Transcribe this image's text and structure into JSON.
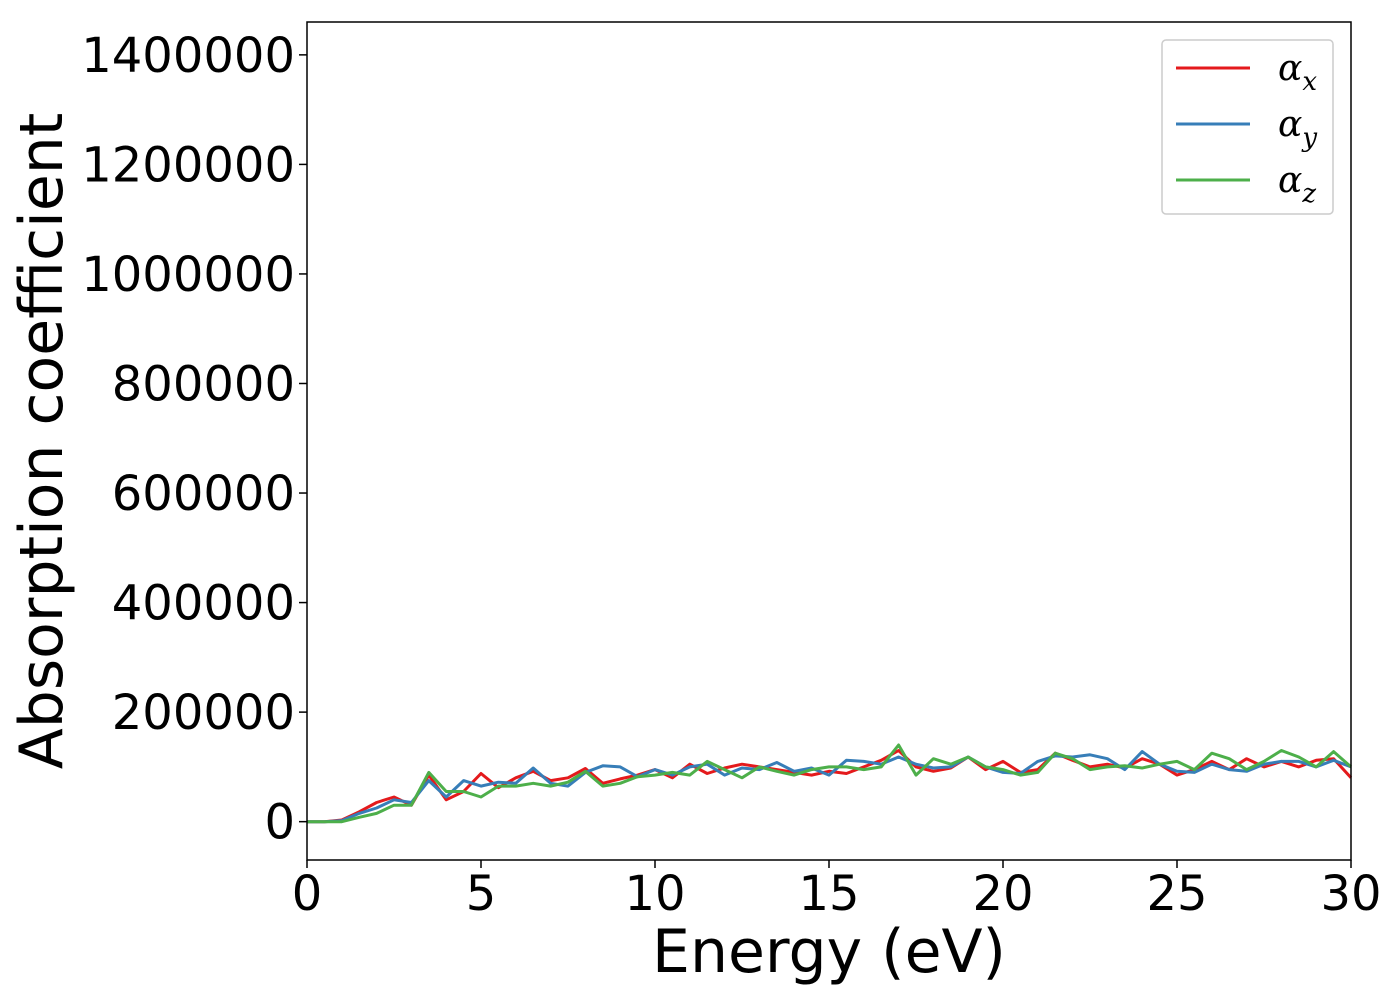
{
  "chart_data": {
    "type": "line",
    "xlabel": "Energy (eV)",
    "ylabel": "Absorption coefficient",
    "xlim": [
      0,
      30
    ],
    "ylim": [
      -70000,
      1460000
    ],
    "xticks": [
      0,
      5,
      10,
      15,
      20,
      25,
      30
    ],
    "yticks": [
      0,
      200000,
      400000,
      600000,
      800000,
      1000000,
      1200000,
      1400000
    ],
    "xtick_labels": [
      "0",
      "5",
      "10",
      "15",
      "20",
      "25",
      "30"
    ],
    "ytick_labels": [
      "0",
      "200000",
      "400000",
      "600000",
      "800000",
      "1000000",
      "1200000",
      "1400000"
    ],
    "grid": false,
    "legend_position": "top-right",
    "x": [
      0,
      0.5,
      1,
      1.5,
      2,
      2.5,
      3,
      3.5,
      4,
      4.5,
      5,
      5.5,
      6,
      6.5,
      7,
      7.5,
      8,
      8.5,
      9,
      9.5,
      10,
      10.5,
      11,
      11.5,
      12,
      12.5,
      13,
      13.5,
      14,
      14.5,
      15,
      15.5,
      16,
      16.5,
      17,
      17.5,
      18,
      18.5,
      19,
      19.5,
      20,
      20.5,
      21,
      21.5,
      22,
      22.5,
      23,
      23.5,
      24,
      24.5,
      25,
      25.5,
      26,
      26.5,
      27,
      27.5,
      28,
      28.5,
      29,
      29.5,
      30
    ],
    "series": [
      {
        "name": "α",
        "subscript": "x",
        "color": "#e41a1c",
        "values": [
          0,
          0,
          3000,
          18000,
          35000,
          45000,
          30000,
          85000,
          40000,
          55000,
          88000,
          62000,
          80000,
          92000,
          75000,
          80000,
          97000,
          70000,
          78000,
          85000,
          95000,
          80000,
          105000,
          88000,
          98000,
          105000,
          100000,
          95000,
          90000,
          85000,
          92000,
          88000,
          100000,
          112000,
          130000,
          100000,
          92000,
          98000,
          118000,
          95000,
          110000,
          90000,
          95000,
          125000,
          112000,
          100000,
          105000,
          98000,
          115000,
          105000,
          85000,
          95000,
          110000,
          95000,
          115000,
          100000,
          110000,
          100000,
          112000,
          115000,
          80000
        ]
      },
      {
        "name": "α",
        "subscript": "y",
        "color": "#377eb8",
        "values": [
          0,
          0,
          2000,
          15000,
          25000,
          40000,
          35000,
          75000,
          45000,
          75000,
          65000,
          72000,
          70000,
          98000,
          70000,
          65000,
          90000,
          102000,
          100000,
          82000,
          95000,
          85000,
          100000,
          105000,
          85000,
          98000,
          95000,
          108000,
          92000,
          98000,
          85000,
          112000,
          110000,
          105000,
          118000,
          105000,
          98000,
          100000,
          118000,
          100000,
          90000,
          88000,
          110000,
          120000,
          118000,
          122000,
          115000,
          95000,
          128000,
          105000,
          92000,
          90000,
          105000,
          95000,
          92000,
          105000,
          110000,
          110000,
          100000,
          112000,
          100000
        ]
      },
      {
        "name": "α",
        "subscript": "z",
        "color": "#4daf4a",
        "values": [
          0,
          0,
          0,
          8000,
          15000,
          30000,
          30000,
          90000,
          55000,
          55000,
          45000,
          65000,
          65000,
          70000,
          65000,
          72000,
          92000,
          65000,
          70000,
          82000,
          85000,
          90000,
          85000,
          110000,
          95000,
          80000,
          100000,
          92000,
          85000,
          95000,
          100000,
          100000,
          95000,
          100000,
          140000,
          85000,
          115000,
          105000,
          118000,
          100000,
          95000,
          85000,
          90000,
          125000,
          115000,
          95000,
          100000,
          102000,
          98000,
          105000,
          110000,
          95000,
          125000,
          115000,
          95000,
          110000,
          130000,
          118000,
          100000,
          128000,
          100000
        ]
      }
    ]
  }
}
